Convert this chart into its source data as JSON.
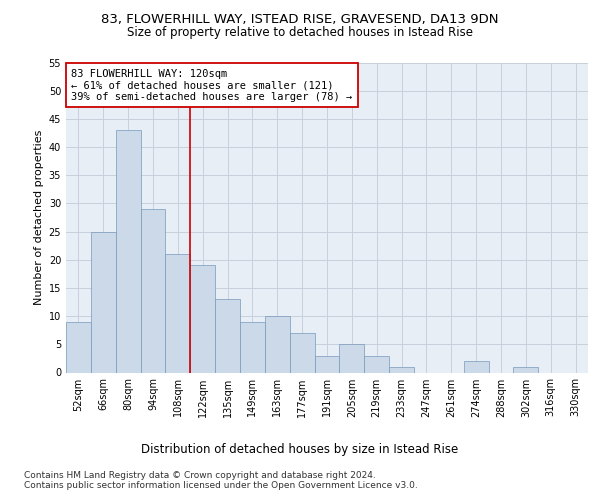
{
  "title": "83, FLOWERHILL WAY, ISTEAD RISE, GRAVESEND, DA13 9DN",
  "subtitle": "Size of property relative to detached houses in Istead Rise",
  "xlabel_bottom": "Distribution of detached houses by size in Istead Rise",
  "ylabel": "Number of detached properties",
  "bar_color": "#ccd9e8",
  "bar_edge_color": "#7799bb",
  "bar_edge_width": 0.5,
  "categories": [
    "52sqm",
    "66sqm",
    "80sqm",
    "94sqm",
    "108sqm",
    "122sqm",
    "135sqm",
    "149sqm",
    "163sqm",
    "177sqm",
    "191sqm",
    "205sqm",
    "219sqm",
    "233sqm",
    "247sqm",
    "261sqm",
    "274sqm",
    "288sqm",
    "302sqm",
    "316sqm",
    "330sqm"
  ],
  "values": [
    9,
    25,
    43,
    29,
    21,
    19,
    13,
    9,
    10,
    7,
    3,
    5,
    3,
    1,
    0,
    0,
    2,
    0,
    1,
    0,
    0
  ],
  "ylim": [
    0,
    55
  ],
  "yticks": [
    0,
    5,
    10,
    15,
    20,
    25,
    30,
    35,
    40,
    45,
    50,
    55
  ],
  "property_line_x": 4.5,
  "annotation_line1": "83 FLOWERHILL WAY: 120sqm",
  "annotation_line2": "← 61% of detached houses are smaller (121)",
  "annotation_line3": "39% of semi-detached houses are larger (78) →",
  "annotation_box_color": "#ffffff",
  "annotation_edge_color": "#cc0000",
  "property_line_color": "#cc0000",
  "footnote1": "Contains HM Land Registry data © Crown copyright and database right 2024.",
  "footnote2": "Contains public sector information licensed under the Open Government Licence v3.0.",
  "grid_color": "#c8d0dc",
  "background_color": "#e8eef5",
  "title_fontsize": 9.5,
  "subtitle_fontsize": 8.5,
  "ylabel_fontsize": 8,
  "tick_fontsize": 7,
  "annotation_fontsize": 7.5,
  "xlabel_bottom_fontsize": 8.5,
  "footnote_fontsize": 6.5
}
